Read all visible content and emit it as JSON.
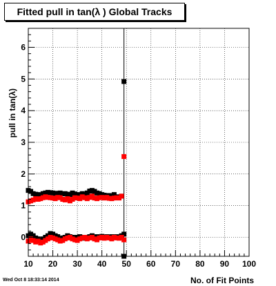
{
  "title": "Fitted pull in tan(λ )  Global Tracks",
  "timestamp": "Wed Oct  8 18:33:14 2014",
  "chart_data": {
    "type": "scatter",
    "title": "Fitted pull in tan(λ )  Global Tracks",
    "xlabel": "No. of Fit Points",
    "ylabel": "pull in tan(λ)",
    "xlim": [
      10,
      100
    ],
    "ylim": [
      -0.6,
      6.6
    ],
    "xticks": [
      10,
      20,
      30,
      40,
      50,
      60,
      70,
      80,
      90,
      100
    ],
    "yticks": [
      0,
      1,
      2,
      3,
      4,
      5,
      6
    ],
    "grid": true,
    "series": [
      {
        "color": "#000000",
        "x": [
          10,
          11,
          12,
          13,
          14,
          15,
          16,
          17,
          18,
          19,
          20,
          21,
          22,
          23,
          24,
          25,
          26,
          27,
          28,
          29,
          30,
          31,
          32,
          33,
          34,
          35,
          36,
          37,
          38,
          39,
          40,
          41,
          42,
          43,
          44,
          45,
          46,
          47,
          48,
          49
        ],
        "y": [
          1.48,
          1.45,
          1.38,
          1.36,
          1.35,
          1.34,
          1.38,
          1.4,
          1.42,
          1.41,
          1.4,
          1.38,
          1.39,
          1.4,
          1.37,
          1.38,
          1.36,
          1.35,
          1.4,
          1.37,
          1.33,
          1.35,
          1.38,
          1.35,
          1.4,
          1.46,
          1.48,
          1.45,
          1.4,
          1.38,
          1.35,
          1.33,
          1.3,
          1.32,
          1.3,
          1.35,
          1.28,
          1.27,
          1.3,
          4.92
        ]
      },
      {
        "color": "#000000",
        "x": [
          10,
          11,
          12,
          13,
          14,
          15,
          16,
          17,
          18,
          19,
          20,
          21,
          22,
          23,
          24,
          25,
          26,
          27,
          28,
          29,
          30,
          31,
          32,
          33,
          34,
          35,
          36,
          37,
          38,
          39,
          40,
          41,
          42,
          43,
          44,
          45,
          46,
          47,
          48,
          49,
          49
        ],
        "y": [
          0.05,
          0.1,
          0.05,
          -0.02,
          -0.05,
          -0.08,
          -0.05,
          0.0,
          0.05,
          0.12,
          0.1,
          0.05,
          0.02,
          -0.05,
          -0.02,
          0.0,
          0.05,
          0.02,
          0.0,
          -0.02,
          0.0,
          0.02,
          0.0,
          -0.03,
          0.0,
          0.02,
          0.05,
          0.0,
          0.02,
          0.0,
          0.03,
          0.0,
          0.02,
          0.0,
          0.02,
          0.0,
          0.02,
          0.0,
          0.05,
          0.1,
          -0.62
        ]
      },
      {
        "color": "#ff0000",
        "x": [
          10,
          11,
          12,
          13,
          14,
          15,
          16,
          17,
          18,
          19,
          20,
          21,
          22,
          23,
          24,
          25,
          26,
          27,
          28,
          29,
          30,
          31,
          32,
          33,
          34,
          35,
          36,
          37,
          38,
          39,
          40,
          41,
          42,
          43,
          44,
          45,
          46,
          47,
          48,
          49
        ],
        "y": [
          1.12,
          1.15,
          1.18,
          1.22,
          1.2,
          1.22,
          1.25,
          1.28,
          1.26,
          1.25,
          1.24,
          1.22,
          1.26,
          1.25,
          1.2,
          1.18,
          1.22,
          1.15,
          1.2,
          1.25,
          1.24,
          1.22,
          1.28,
          1.25,
          1.22,
          1.26,
          1.3,
          1.24,
          1.22,
          1.25,
          1.26,
          1.24,
          1.26,
          1.23,
          1.22,
          1.24,
          1.25,
          1.24,
          1.3,
          2.55
        ]
      },
      {
        "color": "#ff0000",
        "x": [
          10,
          11,
          12,
          13,
          14,
          15,
          16,
          17,
          18,
          19,
          20,
          21,
          22,
          23,
          24,
          25,
          26,
          27,
          28,
          29,
          30,
          31,
          32,
          33,
          34,
          35,
          36,
          37,
          38,
          39,
          40,
          41,
          42,
          43,
          44,
          45,
          46,
          47,
          48,
          49
        ],
        "y": [
          -0.12,
          -0.05,
          -0.1,
          -0.15,
          -0.12,
          -0.18,
          -0.15,
          -0.1,
          -0.05,
          0.0,
          -0.02,
          -0.05,
          -0.08,
          -0.12,
          -0.1,
          -0.05,
          -0.02,
          0.0,
          -0.05,
          -0.08,
          -0.1,
          -0.05,
          -0.02,
          0.0,
          -0.05,
          -0.02,
          0.0,
          -0.05,
          -0.08,
          -0.02,
          0.0,
          -0.03,
          0.0,
          -0.02,
          -0.05,
          0.0,
          -0.02,
          -0.03,
          0.0,
          -0.08
        ]
      }
    ]
  }
}
